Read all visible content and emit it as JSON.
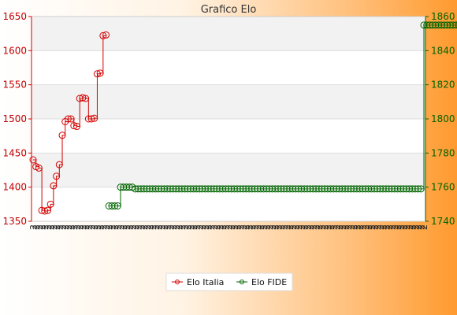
{
  "chart_data": {
    "type": "line",
    "title": "Grafico Elo",
    "left_axis": {
      "ylim": [
        1350,
        1650
      ],
      "ticks": [
        1350,
        1400,
        1450,
        1500,
        1550,
        1600,
        1650
      ],
      "color": "#d40000"
    },
    "right_axis": {
      "ylim": [
        1740,
        1860
      ],
      "ticks": [
        1740,
        1760,
        1780,
        1800,
        1820,
        1840,
        1860
      ],
      "color": "#006400"
    },
    "grid": true,
    "legend_position": "bottom",
    "x_tick_count": 135,
    "x_tick_label": "2",
    "series": [
      {
        "name": "Elo Italia",
        "axis": "left",
        "color": "#d40000",
        "x_indices": [
          0,
          1,
          2,
          3,
          4,
          5,
          6,
          7,
          8,
          9,
          10,
          11,
          12,
          13,
          14,
          15,
          16,
          17,
          18,
          19,
          20,
          21,
          22,
          23,
          24,
          25
        ],
        "values": [
          1440,
          1430,
          1428,
          1366,
          1365,
          1366,
          1375,
          1402,
          1416,
          1433,
          1476,
          1496,
          1500,
          1500,
          1490,
          1489,
          1530,
          1531,
          1530,
          1500,
          1500,
          1501,
          1566,
          1567,
          1622,
          1623
        ]
      },
      {
        "name": "Elo FIDE",
        "axis": "right",
        "color": "#006400",
        "x_start": 26,
        "values": [
          1749,
          1749,
          1749,
          1749,
          1760,
          1760,
          1760,
          1760,
          1760,
          1759,
          1759,
          1759,
          1759,
          1759,
          1759,
          1759,
          1759,
          1759,
          1759,
          1759,
          1759,
          1759,
          1759,
          1759,
          1759,
          1759,
          1759,
          1759,
          1759,
          1759,
          1759,
          1759,
          1759,
          1759,
          1759,
          1759,
          1759,
          1759,
          1759,
          1759,
          1759,
          1759,
          1759,
          1759,
          1759,
          1759,
          1759,
          1759,
          1759,
          1759,
          1759,
          1759,
          1759,
          1759,
          1759,
          1759,
          1759,
          1759,
          1759,
          1759,
          1759,
          1759,
          1759,
          1759,
          1759,
          1759,
          1759,
          1759,
          1759,
          1759,
          1759,
          1759,
          1759,
          1759,
          1759,
          1759,
          1759,
          1759,
          1759,
          1759,
          1759,
          1759,
          1759,
          1759,
          1759,
          1759,
          1759,
          1759,
          1759,
          1759,
          1759,
          1759,
          1759,
          1759,
          1759,
          1759,
          1759,
          1759,
          1759,
          1759,
          1759,
          1759,
          1759,
          1759,
          1759,
          1759,
          1759,
          1759,
          1855,
          1855,
          1855,
          1855,
          1855,
          1855,
          1855,
          1855,
          1855,
          1855,
          1855,
          1855,
          1855,
          1855,
          1855,
          1855,
          1855,
          1855,
          1855
        ]
      }
    ]
  }
}
